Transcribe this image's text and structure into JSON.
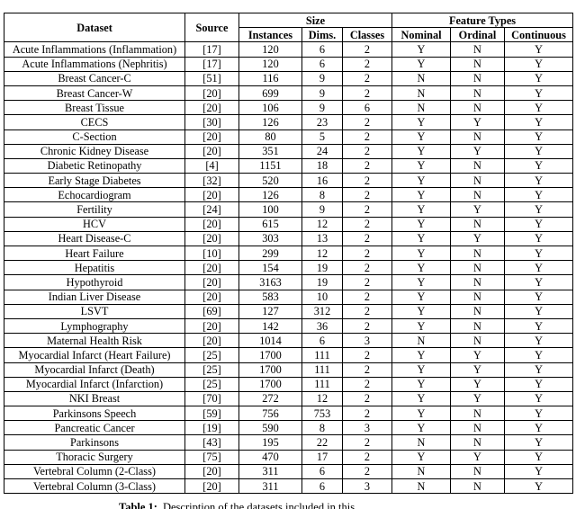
{
  "table": {
    "header": {
      "dataset": "Dataset",
      "source": "Source",
      "size": "Size",
      "feature_types": "Feature Types",
      "sub": [
        "Instances",
        "Dims.",
        "Classes",
        "Nominal",
        "Ordinal",
        "Continuous"
      ]
    },
    "rows": [
      [
        "Acute Inflammations (Inflammation)",
        "[17]",
        "120",
        "6",
        "2",
        "Y",
        "N",
        "Y"
      ],
      [
        "Acute Inflammations (Nephritis)",
        "[17]",
        "120",
        "6",
        "2",
        "Y",
        "N",
        "Y"
      ],
      [
        "Breast Cancer-C",
        "[51]",
        "116",
        "9",
        "2",
        "N",
        "N",
        "Y"
      ],
      [
        "Breast Cancer-W",
        "[20]",
        "699",
        "9",
        "2",
        "N",
        "N",
        "Y"
      ],
      [
        "Breast Tissue",
        "[20]",
        "106",
        "9",
        "6",
        "N",
        "N",
        "Y"
      ],
      [
        "CECS",
        "[30]",
        "126",
        "23",
        "2",
        "Y",
        "Y",
        "Y"
      ],
      [
        "C-Section",
        "[20]",
        "80",
        "5",
        "2",
        "Y",
        "N",
        "Y"
      ],
      [
        "Chronic Kidney Disease",
        "[20]",
        "351",
        "24",
        "2",
        "Y",
        "Y",
        "Y"
      ],
      [
        "Diabetic Retinopathy",
        "[4]",
        "1151",
        "18",
        "2",
        "Y",
        "N",
        "Y"
      ],
      [
        "Early Stage Diabetes",
        "[32]",
        "520",
        "16",
        "2",
        "Y",
        "N",
        "Y"
      ],
      [
        "Echocardiogram",
        "[20]",
        "126",
        "8",
        "2",
        "Y",
        "N",
        "Y"
      ],
      [
        "Fertility",
        "[24]",
        "100",
        "9",
        "2",
        "Y",
        "Y",
        "Y"
      ],
      [
        "HCV",
        "[20]",
        "615",
        "12",
        "2",
        "Y",
        "N",
        "Y"
      ],
      [
        "Heart Disease-C",
        "[20]",
        "303",
        "13",
        "2",
        "Y",
        "Y",
        "Y"
      ],
      [
        "Heart Failure",
        "[10]",
        "299",
        "12",
        "2",
        "Y",
        "N",
        "Y"
      ],
      [
        "Hepatitis",
        "[20]",
        "154",
        "19",
        "2",
        "Y",
        "N",
        "Y"
      ],
      [
        "Hypothyroid",
        "[20]",
        "3163",
        "19",
        "2",
        "Y",
        "N",
        "Y"
      ],
      [
        "Indian Liver Disease",
        "[20]",
        "583",
        "10",
        "2",
        "Y",
        "N",
        "Y"
      ],
      [
        "LSVT",
        "[69]",
        "127",
        "312",
        "2",
        "Y",
        "N",
        "Y"
      ],
      [
        "Lymphography",
        "[20]",
        "142",
        "36",
        "2",
        "Y",
        "N",
        "Y"
      ],
      [
        "Maternal Health Risk",
        "[20]",
        "1014",
        "6",
        "3",
        "N",
        "N",
        "Y"
      ],
      [
        "Myocardial Infarct (Heart Failure)",
        "[25]",
        "1700",
        "111",
        "2",
        "Y",
        "Y",
        "Y"
      ],
      [
        "Myocardial Infarct (Death)",
        "[25]",
        "1700",
        "111",
        "2",
        "Y",
        "Y",
        "Y"
      ],
      [
        "Myocardial Infarct (Infarction)",
        "[25]",
        "1700",
        "111",
        "2",
        "Y",
        "Y",
        "Y"
      ],
      [
        "NKI Breast",
        "[70]",
        "272",
        "12",
        "2",
        "Y",
        "Y",
        "Y"
      ],
      [
        "Parkinsons Speech",
        "[59]",
        "756",
        "753",
        "2",
        "Y",
        "N",
        "Y"
      ],
      [
        "Pancreatic Cancer",
        "[19]",
        "590",
        "8",
        "3",
        "Y",
        "N",
        "Y"
      ],
      [
        "Parkinsons",
        "[43]",
        "195",
        "22",
        "2",
        "N",
        "N",
        "Y"
      ],
      [
        "Thoracic Surgery",
        "[75]",
        "470",
        "17",
        "2",
        "Y",
        "Y",
        "Y"
      ],
      [
        "Vertebral Column (2-Class)",
        "[20]",
        "311",
        "6",
        "2",
        "N",
        "N",
        "Y"
      ],
      [
        "Vertebral Column (3-Class)",
        "[20]",
        "311",
        "6",
        "3",
        "N",
        "N",
        "Y"
      ]
    ]
  },
  "caption": {
    "label": "Table 1:",
    "text": "Description of the datasets included in this"
  }
}
